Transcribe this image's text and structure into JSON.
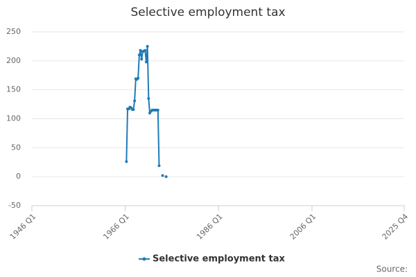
{
  "chart_data": {
    "type": "line",
    "title": "Selective employment tax",
    "x": [
      "1966 Q2",
      "1966 Q3",
      "1966 Q4",
      "1967 Q1",
      "1967 Q2",
      "1967 Q3",
      "1967 Q4",
      "1968 Q1",
      "1968 Q2",
      "1968 Q3",
      "1968 Q4",
      "1969 Q1",
      "1969 Q2",
      "1969 Q3",
      "1969 Q4",
      "1970 Q1",
      "1970 Q2",
      "1970 Q3",
      "1970 Q4",
      "1971 Q1",
      "1971 Q2",
      "1971 Q3",
      "1971 Q4",
      "1972 Q1",
      "1972 Q2",
      "1972 Q3",
      "1972 Q4",
      "1973 Q1",
      "1973 Q2",
      "1973 Q3",
      "1973 Q4",
      "1974 Q1",
      "1974 Q2",
      "1974 Q3",
      "1974 Q4"
    ],
    "series": [
      {
        "name": "Selective employment tax",
        "color": "#1f7bb6",
        "values": [
          26,
          117,
          117,
          120,
          119,
          116,
          116,
          131,
          169,
          168,
          170,
          210,
          218,
          203,
          216,
          217,
          218,
          198,
          225,
          135,
          110,
          113,
          115,
          115,
          115,
          115,
          115,
          115,
          19,
          null,
          null,
          2,
          null,
          null,
          0
        ]
      }
    ],
    "xlim": [
      "1946 Q1",
      "2025 Q4"
    ],
    "xticks": [
      "1946 Q1",
      "1966 Q1",
      "1986 Q1",
      "2006 Q1",
      "2025 Q4"
    ],
    "ylim": [
      -50,
      250
    ],
    "yticks": [
      -50,
      0,
      50,
      100,
      150,
      200,
      250
    ],
    "grid": true,
    "source": "Source:"
  }
}
